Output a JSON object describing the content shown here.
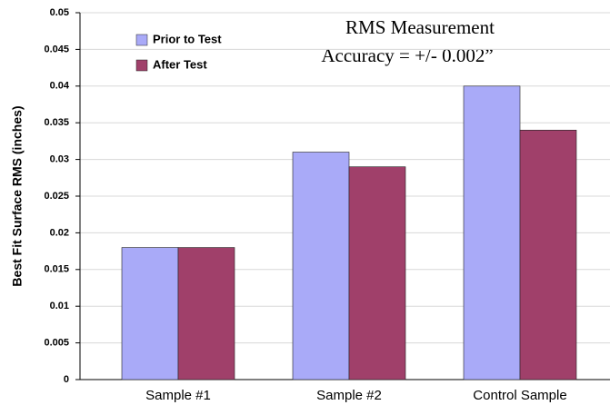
{
  "chart_data": {
    "type": "bar",
    "y_label": "Best Fit Surface RMS (inches)",
    "annotations": [
      "RMS Measurement",
      "Accuracy = +/- 0.002”"
    ],
    "categories": [
      "Sample #1",
      "Sample #2",
      "Control Sample"
    ],
    "series": [
      {
        "name": "Prior to Test",
        "color": "#a9aaf8",
        "values": [
          0.018,
          0.031,
          0.04
        ]
      },
      {
        "name": "After Test",
        "color": "#a0406a",
        "values": [
          0.018,
          0.029,
          0.034
        ]
      }
    ],
    "ylim": [
      0,
      0.05
    ],
    "yticks": [
      0,
      0.005,
      0.01,
      0.015,
      0.02,
      0.025,
      0.03,
      0.035,
      0.04,
      0.045,
      0.05
    ],
    "grid": true,
    "legend": "upper left"
  }
}
